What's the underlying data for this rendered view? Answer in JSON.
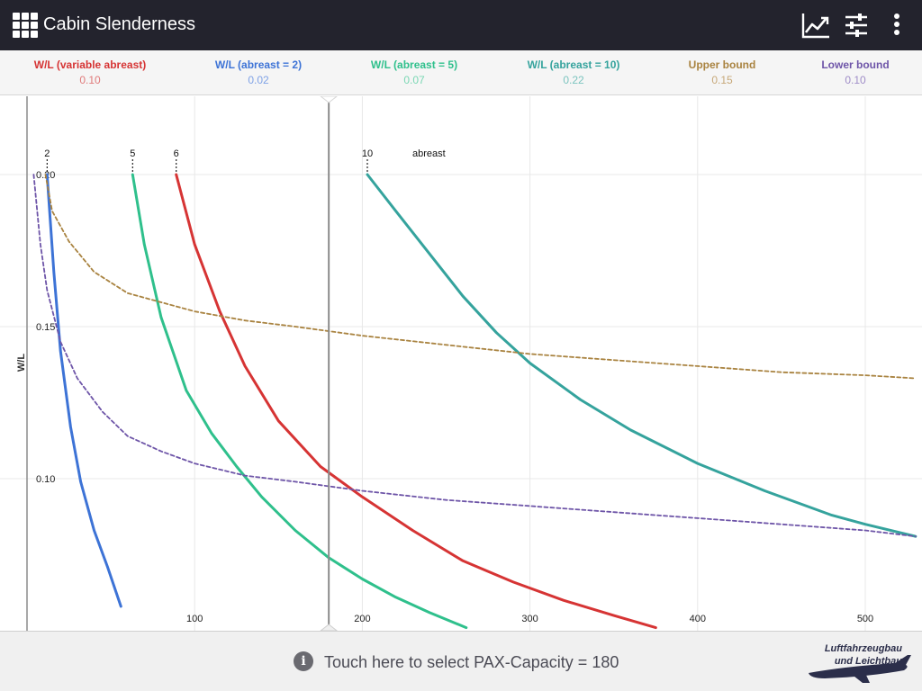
{
  "app": {
    "title": "Cabin Slenderness",
    "menu_icon": "apps-grid-icon",
    "actions": [
      "chart-icon",
      "tune-sliders-icon",
      "more-vert-icon"
    ]
  },
  "legend": [
    {
      "name": "W/L (variable abreast)",
      "value": "0.10",
      "color": "#d63434",
      "value_color": "#e07a7a"
    },
    {
      "name": "W/L (abreast = 2)",
      "value": "0.02",
      "color": "#3d73d6",
      "value_color": "#7fa2e6"
    },
    {
      "name": "W/L (abreast = 5)",
      "value": "0.07",
      "color": "#2fc08c",
      "value_color": "#7ad7b4"
    },
    {
      "name": "W/L (abreast = 10)",
      "value": "0.22",
      "color": "#35a39d",
      "value_color": "#7cc4bf"
    },
    {
      "name": "Upper bound",
      "value": "0.15",
      "color": "#a98340",
      "value_color": "#c7a878"
    },
    {
      "name": "Lower bound",
      "value": "0.10",
      "color": "#6e55a8",
      "value_color": "#9f8dc8"
    }
  ],
  "chart_data": {
    "type": "line",
    "ylabel": "W/L",
    "xlabel": "",
    "xlim": [
      0,
      530
    ],
    "ylim": [
      0.05,
      0.22
    ],
    "x_ticks": [
      100,
      200,
      300,
      400,
      500
    ],
    "y_ticks": [
      "0.20",
      "0.15",
      "0.10"
    ],
    "grid": true,
    "cursor_x": 180,
    "abreast_label": "abreast",
    "abreast_markers": [
      {
        "label": "2",
        "x": 12
      },
      {
        "label": "5",
        "x": 63
      },
      {
        "label": "6",
        "x": 89
      },
      {
        "label": "10",
        "x": 203
      }
    ],
    "series": [
      {
        "name": "W/L (abreast = 2)",
        "color": "#3d73d6",
        "dashed": false,
        "points": [
          [
            12,
            0.2
          ],
          [
            16,
            0.168
          ],
          [
            20,
            0.142
          ],
          [
            26,
            0.117
          ],
          [
            32,
            0.099
          ],
          [
            40,
            0.083
          ],
          [
            48,
            0.071
          ],
          [
            56,
            0.058
          ]
        ]
      },
      {
        "name": "W/L (abreast = 5)",
        "color": "#2fc08c",
        "dashed": false,
        "points": [
          [
            63,
            0.2
          ],
          [
            70,
            0.177
          ],
          [
            80,
            0.153
          ],
          [
            95,
            0.129
          ],
          [
            110,
            0.115
          ],
          [
            125,
            0.104
          ],
          [
            140,
            0.094
          ],
          [
            160,
            0.083
          ],
          [
            180,
            0.074
          ],
          [
            200,
            0.067
          ],
          [
            220,
            0.061
          ],
          [
            240,
            0.056
          ],
          [
            262,
            0.051
          ]
        ]
      },
      {
        "name": "W/L (variable abreast)",
        "color": "#d63434",
        "dashed": false,
        "points": [
          [
            89,
            0.2
          ],
          [
            100,
            0.177
          ],
          [
            115,
            0.155
          ],
          [
            130,
            0.137
          ],
          [
            150,
            0.119
          ],
          [
            175,
            0.104
          ],
          [
            200,
            0.094
          ],
          [
            230,
            0.083
          ],
          [
            260,
            0.073
          ],
          [
            290,
            0.066
          ],
          [
            320,
            0.06
          ],
          [
            350,
            0.055
          ],
          [
            375,
            0.051
          ]
        ]
      },
      {
        "name": "W/L (abreast = 10)",
        "color": "#35a39d",
        "dashed": false,
        "points": [
          [
            203,
            0.2
          ],
          [
            220,
            0.188
          ],
          [
            240,
            0.174
          ],
          [
            260,
            0.16
          ],
          [
            280,
            0.148
          ],
          [
            300,
            0.138
          ],
          [
            330,
            0.126
          ],
          [
            360,
            0.116
          ],
          [
            400,
            0.105
          ],
          [
            440,
            0.096
          ],
          [
            480,
            0.088
          ],
          [
            500,
            0.085
          ],
          [
            530,
            0.081
          ]
        ]
      },
      {
        "name": "Upper bound",
        "color": "#a98340",
        "dashed": true,
        "points": [
          [
            11,
            0.2
          ],
          [
            15,
            0.188
          ],
          [
            25,
            0.178
          ],
          [
            40,
            0.168
          ],
          [
            60,
            0.161
          ],
          [
            80,
            0.158
          ],
          [
            100,
            0.155
          ],
          [
            130,
            0.152
          ],
          [
            160,
            0.15
          ],
          [
            200,
            0.147
          ],
          [
            250,
            0.144
          ],
          [
            300,
            0.141
          ],
          [
            350,
            0.139
          ],
          [
            400,
            0.137
          ],
          [
            450,
            0.135
          ],
          [
            500,
            0.134
          ],
          [
            530,
            0.133
          ]
        ]
      },
      {
        "name": "Lower bound",
        "color": "#6e55a8",
        "dashed": true,
        "points": [
          [
            4,
            0.2
          ],
          [
            8,
            0.177
          ],
          [
            12,
            0.162
          ],
          [
            20,
            0.145
          ],
          [
            30,
            0.133
          ],
          [
            45,
            0.122
          ],
          [
            60,
            0.114
          ],
          [
            80,
            0.109
          ],
          [
            100,
            0.105
          ],
          [
            130,
            0.101
          ],
          [
            160,
            0.099
          ],
          [
            200,
            0.096
          ],
          [
            250,
            0.093
          ],
          [
            300,
            0.091
          ],
          [
            350,
            0.089
          ],
          [
            400,
            0.087
          ],
          [
            450,
            0.085
          ],
          [
            500,
            0.083
          ],
          [
            530,
            0.081
          ]
        ]
      }
    ]
  },
  "bottom": {
    "info_icon": "info-icon",
    "hint": "Touch here to select PAX-Capacity = 180",
    "logo_line1": "Luftfahrzeugbau",
    "logo_line2": "und Leichtbau"
  }
}
